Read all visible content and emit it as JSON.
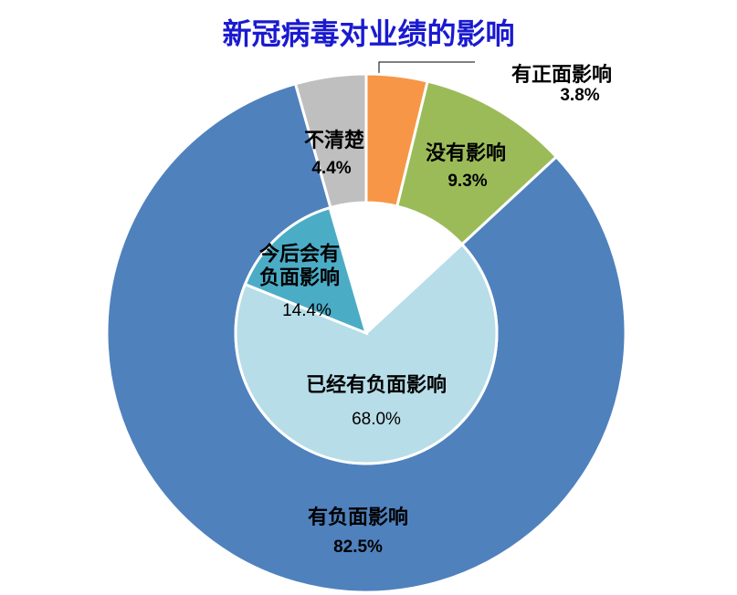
{
  "chart_data": [
    {
      "type": "donut",
      "title": "新冠病毒对业绩的影响",
      "categories": [
        "有正面影响",
        "没有影响",
        "有负面影响",
        "不清楚"
      ],
      "values": [
        3.8,
        9.3,
        82.5,
        4.4
      ],
      "value_labels": [
        "3.8%",
        "9.3%",
        "82.5%",
        "4.4%"
      ],
      "colors": [
        "#f79646",
        "#9bbb59",
        "#4f81bd",
        "#bfbfbf"
      ]
    },
    {
      "type": "pie",
      "categories": [
        "已经有负面影响",
        "今后会有负面影响"
      ],
      "values": [
        68.0,
        14.4
      ],
      "value_labels": [
        "68.0%",
        "14.4%"
      ],
      "colors": [
        "#b7dde8",
        "#4bacc6"
      ]
    }
  ]
}
